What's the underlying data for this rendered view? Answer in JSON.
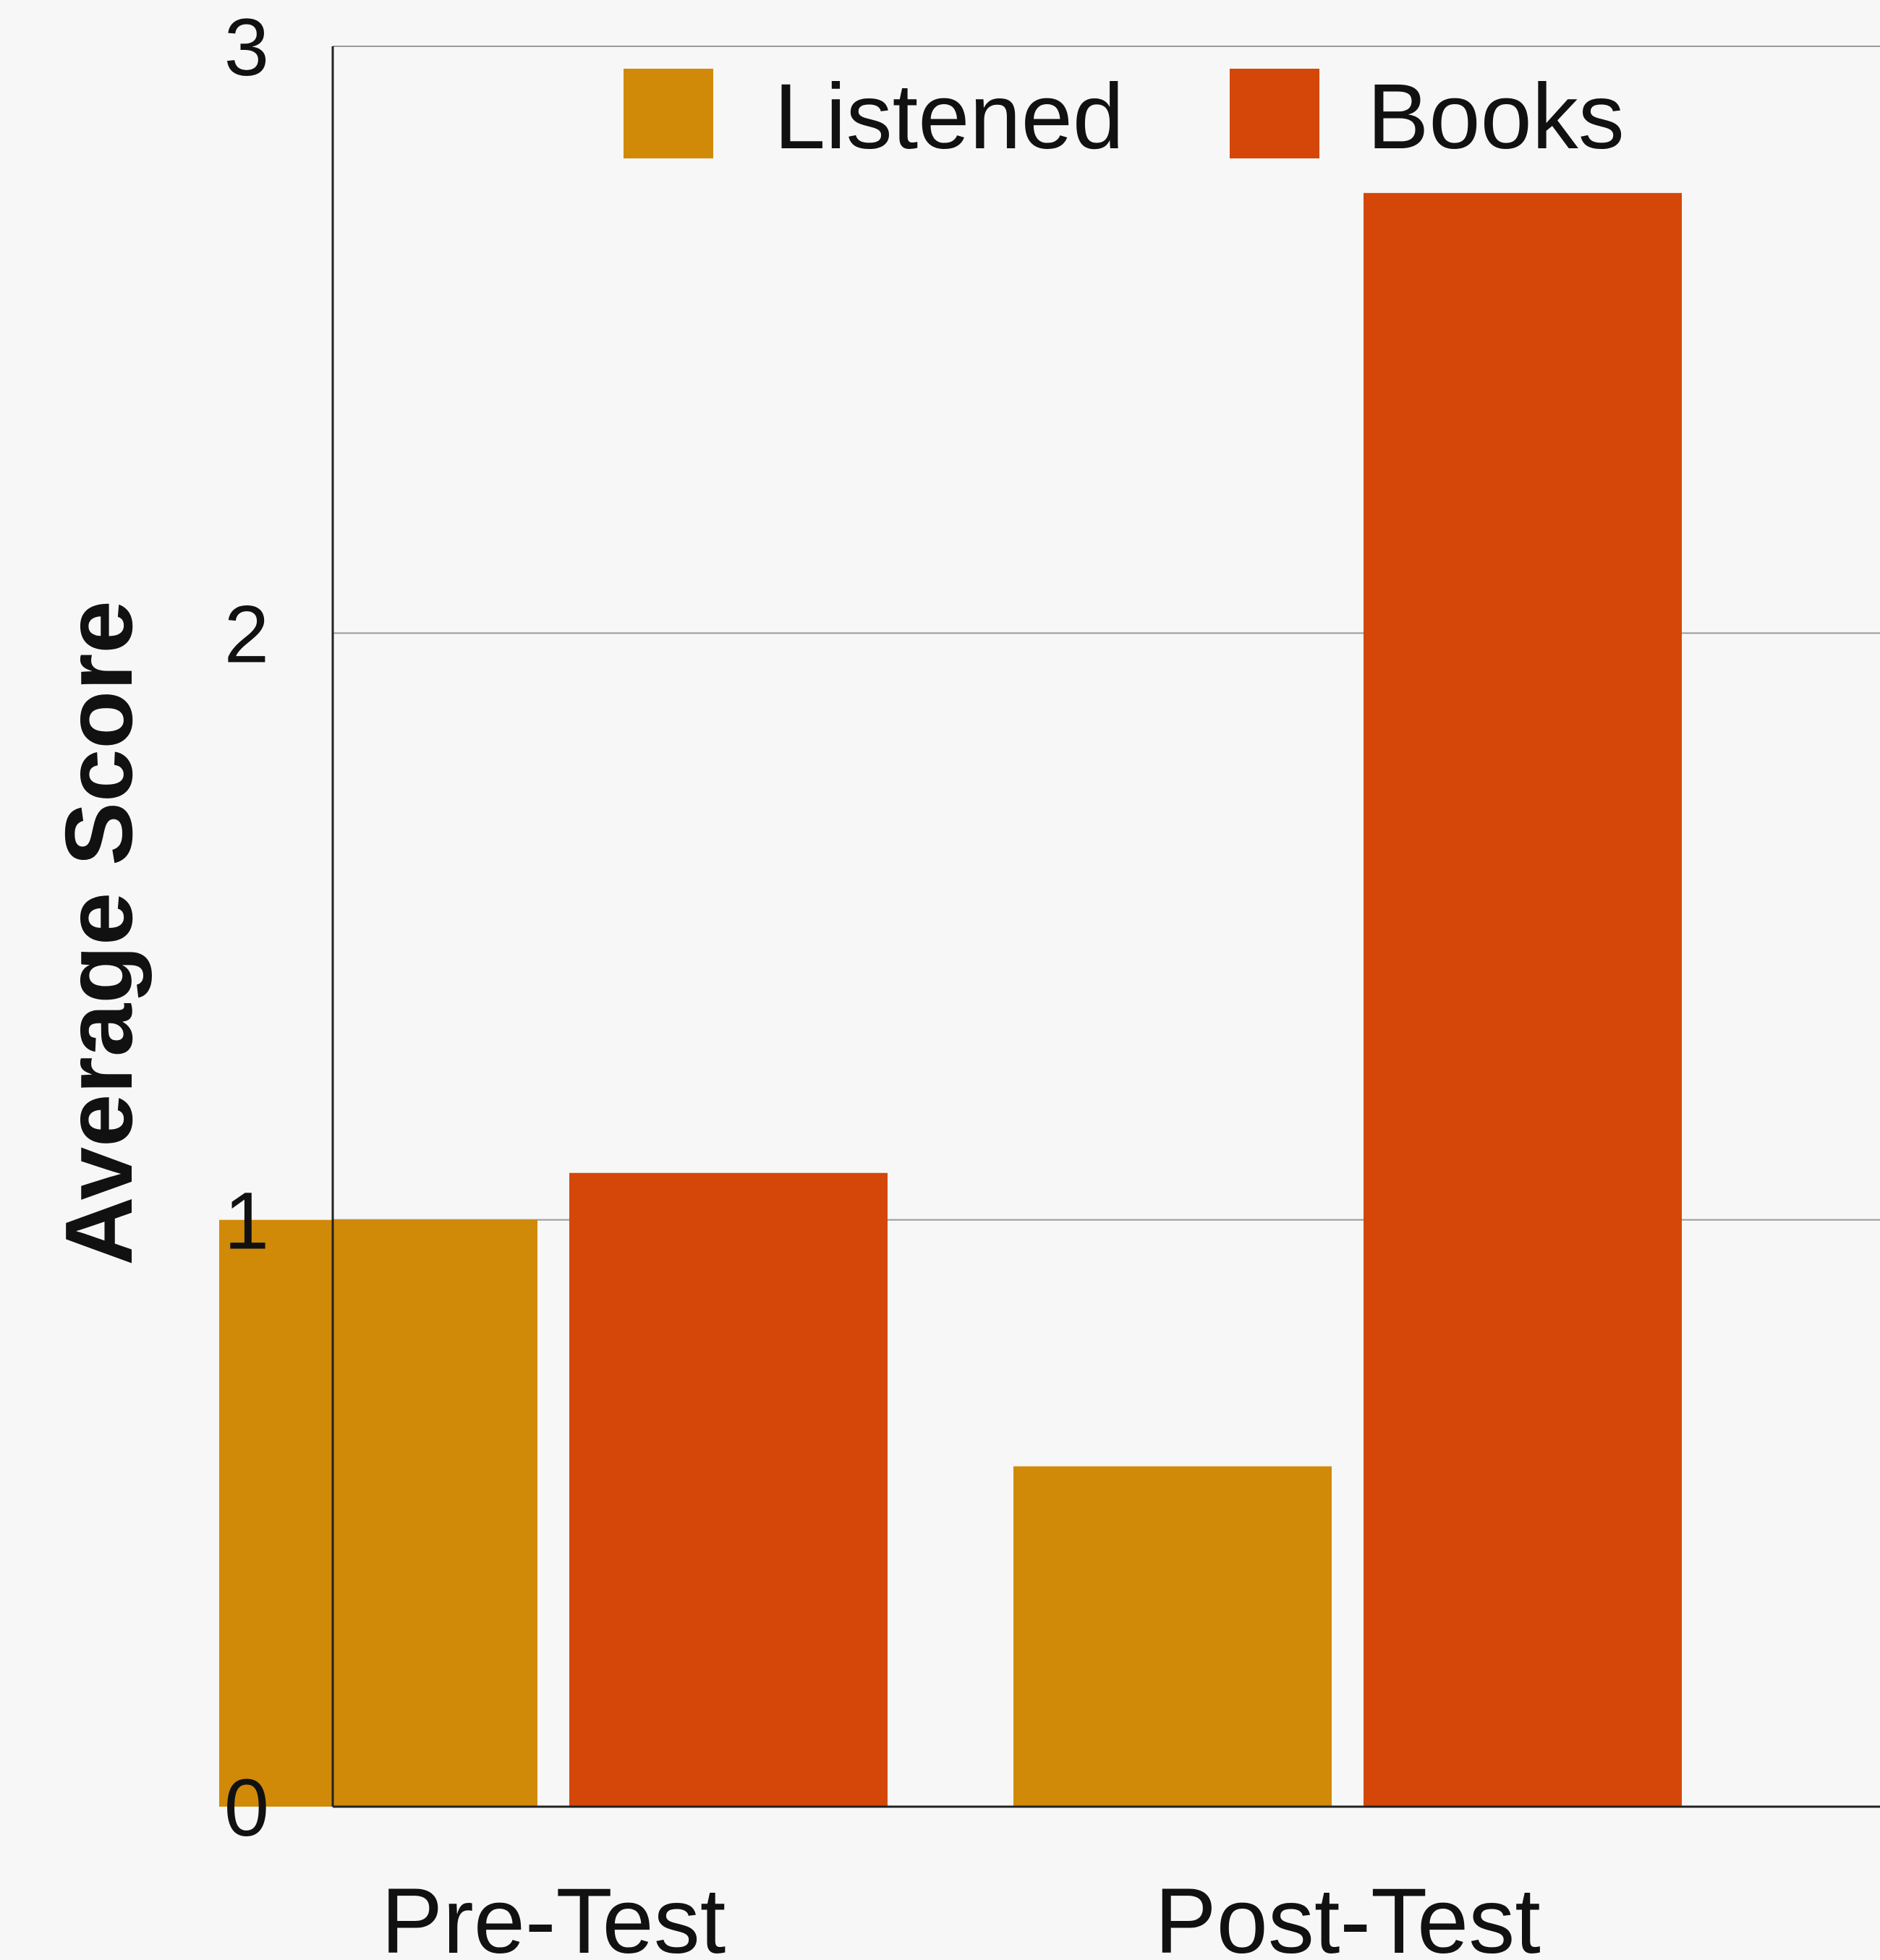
{
  "chart_data": {
    "type": "bar",
    "categories": [
      "Pre-Test",
      "Post-Test"
    ],
    "series": [
      {
        "name": "Listened",
        "values": [
          1.0,
          0.58
        ],
        "color": "#d08a08"
      },
      {
        "name": "Books",
        "values": [
          1.08,
          2.75
        ],
        "color": "#d44708"
      }
    ],
    "xlabel": "",
    "ylabel": "Average Score",
    "ylim": [
      0,
      3
    ],
    "yticks": [
      0,
      1,
      2,
      3
    ],
    "grid": true,
    "legend_position": "top"
  }
}
